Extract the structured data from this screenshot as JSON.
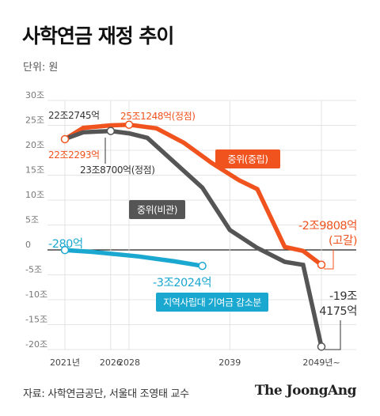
{
  "header": {
    "title": "사학연금 재정 추이",
    "unit": "단위: 원"
  },
  "footer": {
    "source": "자료: 사학연금공단, 서울대 조영태 교수",
    "logo": "The JoongAng"
  },
  "colors": {
    "optimistic": "#f0531e",
    "pessimistic": "#555555",
    "regional": "#1aa7d0",
    "axis": "#222222",
    "grid": "#dddddd"
  },
  "chart_data": {
    "type": "line",
    "title": "사학연금 재정 추이",
    "ylabel": "단위: 원",
    "ylim": [
      -20,
      30
    ],
    "y_unit": "조",
    "yticks": [
      "30조",
      "25조",
      "20조",
      "15조",
      "10조",
      "5조",
      "0",
      "-5조",
      "-10조",
      "-15조",
      "-20조"
    ],
    "ytick_values": [
      30,
      25,
      20,
      15,
      10,
      5,
      0,
      -5,
      -10,
      -15,
      -20
    ],
    "xticks": [
      "2021년",
      "2026",
      "2028",
      "2039",
      "2049년~"
    ],
    "xtick_values": [
      2021,
      2026,
      2028,
      2039,
      2049
    ],
    "series": [
      {
        "name": "중위(중립)",
        "color": "#f0531e",
        "x": [
          2021,
          2023,
          2026,
          2028,
          2031,
          2034,
          2037,
          2040,
          2042,
          2045,
          2047,
          2049
        ],
        "y": [
          22.2293,
          24.5,
          25.0,
          25.1248,
          24.4,
          21.5,
          17.5,
          14.0,
          12.2,
          0.6,
          -0.2,
          -2.9808
        ]
      },
      {
        "name": "중위(비관)",
        "color": "#555555",
        "x": [
          2021,
          2023,
          2026,
          2028,
          2030,
          2033,
          2036,
          2039,
          2042,
          2045,
          2047,
          2049
        ],
        "y": [
          22.2745,
          23.6,
          23.87,
          23.4,
          22.5,
          17.5,
          12.5,
          4.0,
          0.4,
          -2.4,
          -3.0,
          -19.4175
        ]
      },
      {
        "name": "지역사립대 기여금 감소분",
        "color": "#1aa7d0",
        "x": [
          2021,
          2024,
          2029,
          2033,
          2036
        ],
        "y": [
          -0.028,
          -0.4,
          -1.3,
          -2.3,
          -3.2024
        ]
      }
    ],
    "annotations": {
      "start_pessimistic": "22조2745억",
      "start_optimistic": "22조2293억",
      "peak_optimistic": "25조1248억(정점)",
      "peak_pessimistic": "23조8700억(정점)",
      "optimistic_label": "중위(중립)",
      "pessimistic_label": "중위(비관)",
      "regional_label": "지역사립대 기여금 감소분",
      "regional_start": "-280억",
      "regional_end": "-3조2024억",
      "optimistic_end_line1": "-2조9808억",
      "optimistic_end_line2": "(고갈)",
      "pessimistic_end_line1": "-19조",
      "pessimistic_end_line2": "4175억"
    }
  }
}
